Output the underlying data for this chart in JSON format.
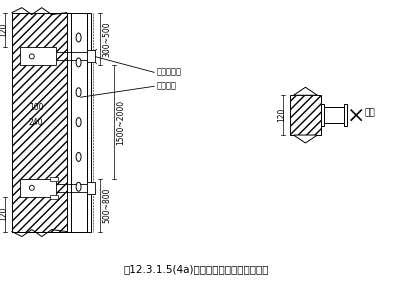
{
  "title": "图12.3.1.5(4a)工字钢立柱用预制砌块侧装",
  "bg_color": "#ffffff",
  "line_color": "#000000",
  "label_izh": "工字钢立柱",
  "label_yzk": "预制砌块",
  "label_hanjie": "焊接",
  "dim_120_top": "120",
  "dim_120_bot": "120",
  "dim_100": "100",
  "dim_240": "240",
  "dim_300_500": "300~500",
  "dim_1500_2000": "1500~2000",
  "dim_500_800": "500~800"
}
